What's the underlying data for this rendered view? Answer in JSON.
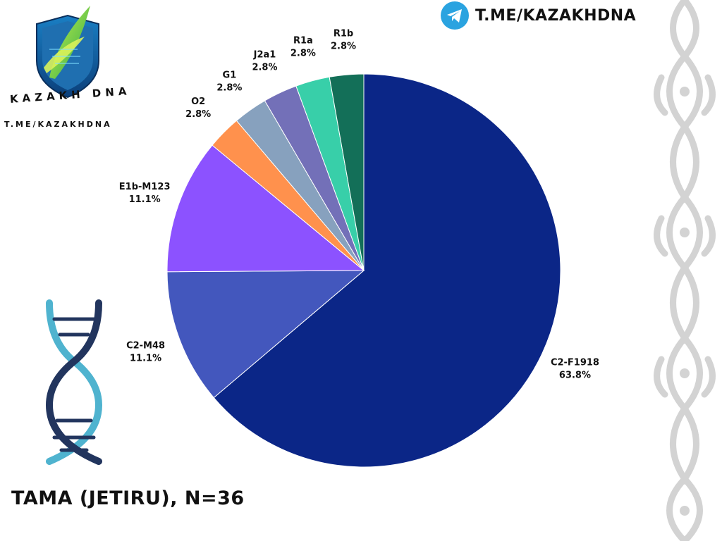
{
  "brand": {
    "logo_text": "KAZAKH DNA",
    "logo_link": "T.ME/KAZAKHDNA",
    "telegram_link": "T.ME/KAZAKHDNA",
    "telegram_icon": "telegram-icon"
  },
  "title": "TAMA (JETIRU), N=36",
  "chart_data": {
    "type": "pie",
    "title": "TAMA (JETIRU), N=36",
    "start_angle_deg": 0,
    "direction": "clockwise",
    "slices": [
      {
        "label": "C2-F1918",
        "value": 63.8,
        "value_label": "63.8%",
        "color": "#0b2687"
      },
      {
        "label": "C2-M48",
        "value": 11.1,
        "value_label": "11.1%",
        "color": "#4357bd"
      },
      {
        "label": "E1b-M123",
        "value": 11.1,
        "value_label": "11.1%",
        "color": "#8c52ff"
      },
      {
        "label": "O2",
        "value": 2.8,
        "value_label": "2.8%",
        "color": "#ff914d"
      },
      {
        "label": "G1",
        "value": 2.8,
        "value_label": "2.8%",
        "color": "#87a1be"
      },
      {
        "label": "J2a1",
        "value": 2.8,
        "value_label": "2.8%",
        "color": "#7370b8"
      },
      {
        "label": "R1a",
        "value": 2.8,
        "value_label": "2.8%",
        "color": "#38cfa9"
      },
      {
        "label": "R1b",
        "value": 2.8,
        "value_label": "2.8%",
        "color": "#136f58"
      }
    ]
  }
}
